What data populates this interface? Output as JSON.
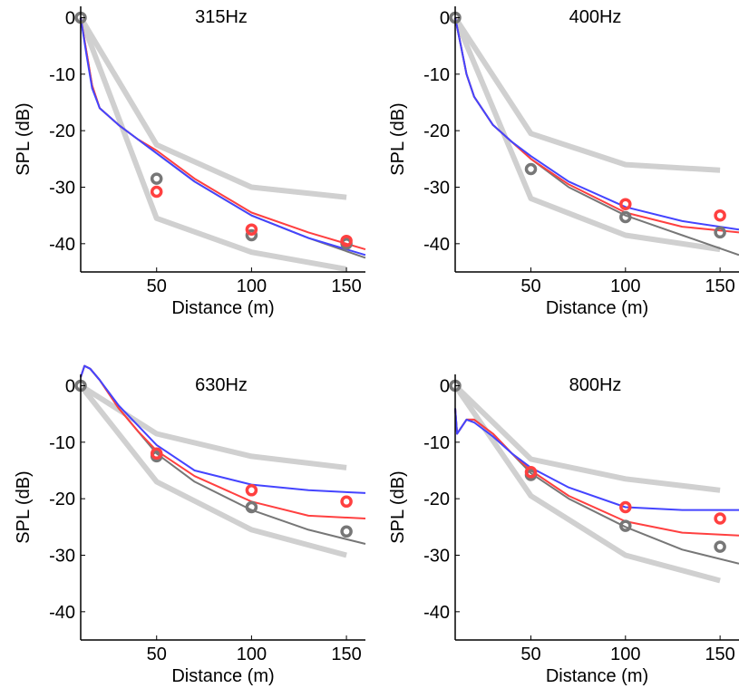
{
  "chart_data": [
    {
      "type": "line",
      "title": "315Hz",
      "xlabel": "Distance (m)",
      "ylabel": "SPL (dB)",
      "xlim": [
        10,
        160
      ],
      "ylim": [
        -45,
        2
      ],
      "xticks": [
        50,
        100,
        150
      ],
      "yticks": [
        0,
        -10,
        -20,
        -30,
        -40
      ],
      "bounds": [
        {
          "x": [
            10,
            50,
            100,
            150
          ],
          "y": [
            0,
            -22.5,
            -30,
            -31.8
          ]
        },
        {
          "x": [
            10,
            50,
            100,
            150
          ],
          "y": [
            0,
            -35.5,
            -41.5,
            -44.5
          ]
        }
      ],
      "series": [
        {
          "color": "#777777",
          "x": [
            10,
            13,
            16,
            20,
            30,
            40,
            50,
            70,
            100,
            130,
            160
          ],
          "y": [
            0,
            -6,
            -12,
            -16,
            -19,
            -21.5,
            -24,
            -29,
            -35,
            -39,
            -42.5
          ]
        },
        {
          "color": "#ff4040",
          "x": [
            10,
            13,
            16,
            20,
            30,
            40,
            50,
            70,
            100,
            130,
            160
          ],
          "y": [
            0,
            -6,
            -12,
            -16,
            -19,
            -21.5,
            -23.5,
            -28.5,
            -34.5,
            -38,
            -41
          ]
        },
        {
          "color": "#4444ff",
          "x": [
            10,
            13,
            16,
            20,
            30,
            40,
            50,
            70,
            100,
            130,
            160
          ],
          "y": [
            0,
            -6.5,
            -12.5,
            -16,
            -19,
            -21.5,
            -24,
            -29,
            -35,
            -39,
            -42
          ]
        }
      ],
      "markers": [
        {
          "color": "#777777",
          "x": [
            10,
            50,
            100,
            150
          ],
          "y": [
            0,
            -28.5,
            -38.5,
            -40
          ]
        },
        {
          "color": "#ff4040",
          "x": [
            50,
            100,
            150
          ],
          "y": [
            -30.8,
            -37.5,
            -39.5
          ]
        }
      ]
    },
    {
      "type": "line",
      "title": "400Hz",
      "xlabel": "Distance (m)",
      "ylabel": "SPL (dB)",
      "xlim": [
        10,
        160
      ],
      "ylim": [
        -45,
        2
      ],
      "xticks": [
        50,
        100,
        150
      ],
      "yticks": [
        0,
        -10,
        -20,
        -30,
        -40
      ],
      "bounds": [
        {
          "x": [
            10,
            50,
            100,
            150
          ],
          "y": [
            0,
            -20.5,
            -26,
            -27
          ]
        },
        {
          "x": [
            10,
            50,
            100,
            150
          ],
          "y": [
            0,
            -32,
            -38.5,
            -41
          ]
        }
      ],
      "series": [
        {
          "color": "#777777",
          "x": [
            10,
            13,
            16,
            20,
            30,
            40,
            50,
            70,
            100,
            130,
            160
          ],
          "y": [
            0,
            -5,
            -10,
            -14,
            -19,
            -22,
            -25,
            -30,
            -35,
            -38.5,
            -42
          ]
        },
        {
          "color": "#ff4040",
          "x": [
            10,
            13,
            16,
            20,
            30,
            40,
            50,
            70,
            100,
            130,
            160
          ],
          "y": [
            0,
            -5,
            -10,
            -14,
            -19,
            -22,
            -25,
            -29.5,
            -34.5,
            -37,
            -38
          ]
        },
        {
          "color": "#4444ff",
          "x": [
            10,
            13,
            16,
            20,
            30,
            40,
            50,
            70,
            100,
            130,
            160
          ],
          "y": [
            0,
            -5,
            -10,
            -14,
            -19,
            -22,
            -24.5,
            -29,
            -33.5,
            -36,
            -37.5
          ]
        }
      ],
      "markers": [
        {
          "color": "#777777",
          "x": [
            10,
            50,
            100,
            150
          ],
          "y": [
            0,
            -26.8,
            -35.3,
            -38
          ]
        },
        {
          "color": "#ff4040",
          "x": [
            100,
            150
          ],
          "y": [
            -33,
            -35
          ]
        }
      ]
    },
    {
      "type": "line",
      "title": "630Hz",
      "xlabel": "Distance (m)",
      "ylabel": "SPL (dB)",
      "xlim": [
        10,
        160
      ],
      "ylim": [
        -45,
        2
      ],
      "xticks": [
        50,
        100,
        150
      ],
      "yticks": [
        0,
        -10,
        -20,
        -30,
        -40
      ],
      "bounds": [
        {
          "x": [
            10,
            50,
            100,
            150
          ],
          "y": [
            0,
            -8.5,
            -12.5,
            -14.5
          ]
        },
        {
          "x": [
            10,
            50,
            100,
            150
          ],
          "y": [
            0,
            -17,
            -25.5,
            -30
          ]
        }
      ],
      "series": [
        {
          "color": "#777777",
          "x": [
            10,
            12,
            15,
            20,
            30,
            40,
            50,
            70,
            100,
            130,
            160
          ],
          "y": [
            1.5,
            3.5,
            3,
            1,
            -4,
            -8,
            -12,
            -17,
            -22,
            -25.5,
            -28
          ]
        },
        {
          "color": "#ff4040",
          "x": [
            10,
            12,
            15,
            20,
            30,
            40,
            50,
            70,
            100,
            130,
            160
          ],
          "y": [
            1.5,
            3.5,
            3,
            1,
            -4,
            -8,
            -11.5,
            -16,
            -20.5,
            -23,
            -23.5
          ]
        },
        {
          "color": "#4444ff",
          "x": [
            10,
            12,
            15,
            20,
            30,
            40,
            50,
            70,
            100,
            130,
            160
          ],
          "y": [
            1.5,
            3.5,
            3,
            1,
            -3.5,
            -7,
            -10.5,
            -15,
            -17.5,
            -18.5,
            -19
          ]
        }
      ],
      "markers": [
        {
          "color": "#777777",
          "x": [
            10,
            50,
            100,
            150
          ],
          "y": [
            0,
            -12.5,
            -21.5,
            -25.8
          ]
        },
        {
          "color": "#ff4040",
          "x": [
            50,
            100,
            150
          ],
          "y": [
            -12,
            -18.5,
            -20.5
          ]
        }
      ]
    },
    {
      "type": "line",
      "title": "800Hz",
      "xlabel": "Distance (m)",
      "ylabel": "SPL (dB)",
      "xlim": [
        10,
        160
      ],
      "ylim": [
        -45,
        2
      ],
      "xticks": [
        50,
        100,
        150
      ],
      "yticks": [
        0,
        -10,
        -20,
        -30,
        -40
      ],
      "bounds": [
        {
          "x": [
            10,
            50,
            100,
            150
          ],
          "y": [
            0,
            -13,
            -16.5,
            -18.5
          ]
        },
        {
          "x": [
            10,
            50,
            100,
            150
          ],
          "y": [
            0,
            -19.5,
            -30,
            -34.5
          ]
        }
      ],
      "series": [
        {
          "color": "#777777",
          "x": [
            10,
            11,
            13,
            16,
            20,
            30,
            40,
            50,
            70,
            100,
            130,
            160
          ],
          "y": [
            -4,
            -8.5,
            -7.5,
            -6,
            -6,
            -8.5,
            -12,
            -15.5,
            -20,
            -25,
            -29,
            -31.5
          ]
        },
        {
          "color": "#ff4040",
          "x": [
            10,
            11,
            13,
            16,
            20,
            30,
            40,
            50,
            70,
            100,
            130,
            160
          ],
          "y": [
            -4,
            -8.5,
            -7.5,
            -6,
            -6,
            -8.5,
            -12,
            -15,
            -19.5,
            -24,
            -26,
            -26.5
          ]
        },
        {
          "color": "#4444ff",
          "x": [
            10,
            11,
            13,
            16,
            20,
            30,
            40,
            50,
            70,
            100,
            130,
            160
          ],
          "y": [
            -4,
            -8.5,
            -7.5,
            -6,
            -6.5,
            -9,
            -12,
            -14.5,
            -18,
            -21.5,
            -22,
            -22
          ]
        }
      ],
      "markers": [
        {
          "color": "#777777",
          "x": [
            10,
            50,
            100,
            150
          ],
          "y": [
            0,
            -15.8,
            -24.8,
            -28.5
          ]
        },
        {
          "color": "#ff4040",
          "x": [
            50,
            100,
            150
          ],
          "y": [
            -15.3,
            -21.5,
            -23.5
          ]
        }
      ]
    }
  ]
}
